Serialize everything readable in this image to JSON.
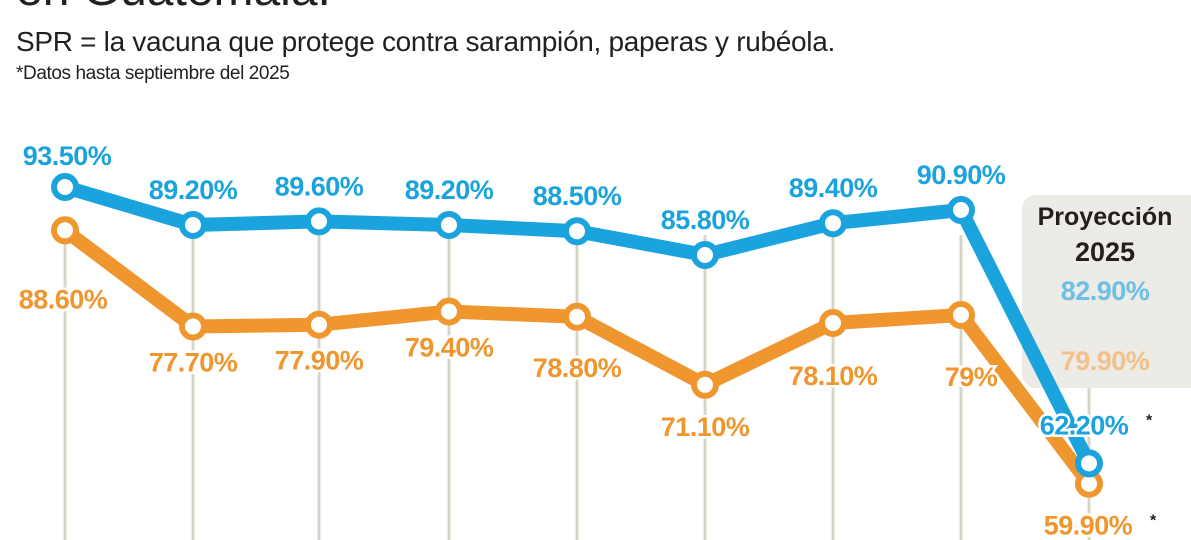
{
  "header": {
    "title": "en Guatemala.",
    "subtitle": "SPR = la vacuna que protege contra sarampión, paperas y rubéola.",
    "note": "*Datos hasta septiembre del 2025"
  },
  "chart_data": {
    "type": "line",
    "title": "en Guatemala.",
    "subtitle": "SPR = la vacuna que protege contra sarampión, paperas y rubéola.",
    "grid": "vertical",
    "series": [
      {
        "color": "#1aa3dc",
        "values": [
          93.5,
          89.2,
          89.6,
          89.2,
          88.5,
          85.8,
          89.4,
          90.9,
          62.2
        ],
        "labels": [
          "93.50%",
          "89.20%",
          "89.60%",
          "89.20%",
          "88.50%",
          "85.80%",
          "89.40%",
          "90.90%",
          "62.20%"
        ]
      },
      {
        "color": "#f0962e",
        "values": [
          88.6,
          77.7,
          77.9,
          79.4,
          78.8,
          71.1,
          78.1,
          79.0,
          59.9
        ],
        "labels": [
          "88.60%",
          "77.70%",
          "77.90%",
          "79.40%",
          "78.80%",
          "71.10%",
          "78.10%",
          "79%",
          "59.90%"
        ]
      }
    ],
    "last_point_marker": "*",
    "projection": {
      "title_line1": "Proyección",
      "title_line2": "2025",
      "values": [
        "82.90%",
        "79.90%"
      ],
      "colors": [
        "#6cc0e5",
        "#f2c08a"
      ],
      "background": "#ecebe5"
    }
  }
}
